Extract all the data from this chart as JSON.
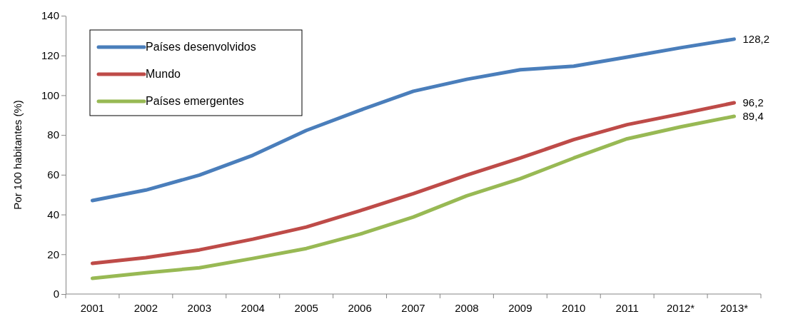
{
  "chart_data": {
    "type": "line",
    "ylabel": "Por 100 habitantes (%)",
    "categories": [
      "2001",
      "2002",
      "2003",
      "2004",
      "2005",
      "2006",
      "2007",
      "2008",
      "2009",
      "2010",
      "2011",
      "2012*",
      "2013*"
    ],
    "ylim": [
      0,
      140
    ],
    "yticks": [
      0,
      20,
      40,
      60,
      80,
      100,
      120,
      140
    ],
    "grid": false,
    "legend": "top left",
    "marker": "none",
    "line_style": "solid",
    "series": [
      {
        "name": "Países desenvolvidos",
        "color": "#4a7ebb",
        "values": [
          47,
          52.3,
          59.8,
          69.8,
          82.3,
          92.4,
          102,
          108,
          112.8,
          114.6,
          119.2,
          123.9,
          128.2
        ],
        "value_labels": [
          null,
          null,
          null,
          null,
          null,
          null,
          null,
          null,
          null,
          null,
          null,
          null,
          "128,2"
        ]
      },
      {
        "name": "Mundo",
        "color": "#be4b48",
        "values": [
          15.4,
          18.3,
          22.2,
          27.6,
          33.7,
          41.9,
          50.5,
          59.8,
          68.4,
          77.7,
          85.2,
          90.6,
          96.2
        ],
        "value_labels": [
          null,
          null,
          null,
          null,
          null,
          null,
          null,
          null,
          null,
          null,
          null,
          null,
          "96,2"
        ]
      },
      {
        "name": "Países emergentes",
        "color": "#98b954",
        "values": [
          7.9,
          10.7,
          13.2,
          17.9,
          22.9,
          30.1,
          38.7,
          49.4,
          58,
          68.4,
          78.1,
          84.1,
          89.4
        ],
        "value_labels": [
          null,
          null,
          null,
          null,
          null,
          null,
          null,
          null,
          null,
          null,
          null,
          null,
          "89,4"
        ]
      }
    ]
  }
}
